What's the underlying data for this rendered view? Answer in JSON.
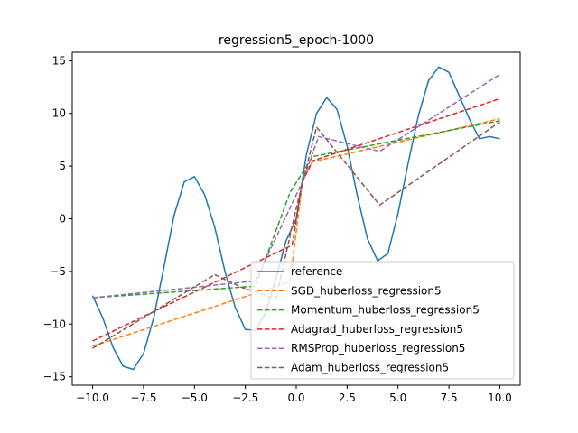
{
  "chart_data": {
    "type": "line",
    "title": "regression5_epoch-1000",
    "xlabel": "",
    "ylabel": "",
    "xlim": [
      -11,
      11
    ],
    "ylim": [
      -15.8,
      15.8
    ],
    "xticks": [
      -10,
      -7.5,
      -5,
      -2.5,
      0,
      2.5,
      5,
      7.5,
      10
    ],
    "xtick_labels": [
      "−10.0",
      "−7.5",
      "−5.0",
      "−2.5",
      "0.0",
      "2.5",
      "5.0",
      "7.5",
      "10.0"
    ],
    "yticks": [
      -15,
      -10,
      -5,
      0,
      5,
      10,
      15
    ],
    "ytick_labels": [
      "−15",
      "−10",
      "−5",
      "0",
      "5",
      "10",
      "15"
    ],
    "grid": false,
    "legend_position": "lower-right",
    "series": [
      {
        "name": "reference",
        "color": "#1f77b4",
        "dashed": false,
        "x": [
          -10.0,
          -9.5,
          -9.0,
          -8.5,
          -8.0,
          -7.5,
          -7.0,
          -6.5,
          -6.0,
          -5.5,
          -5.0,
          -4.5,
          -4.0,
          -3.5,
          -3.0,
          -2.5,
          -2.0,
          -1.5,
          -1.0,
          -0.5,
          0.0,
          0.5,
          1.0,
          1.5,
          2.0,
          2.5,
          3.0,
          3.5,
          4.0,
          4.5,
          5.0,
          5.5,
          6.0,
          6.5,
          7.0,
          7.5,
          8.0,
          8.5,
          9.0,
          9.5,
          10.0
        ],
        "y": [
          -7.3,
          -9.4,
          -12.2,
          -14.0,
          -14.3,
          -12.8,
          -9.4,
          -4.6,
          0.3,
          3.5,
          4.0,
          2.3,
          -0.8,
          -5.0,
          -8.4,
          -10.5,
          -10.6,
          -8.9,
          -5.7,
          -2.1,
          0.0,
          6.1,
          10.0,
          11.5,
          10.4,
          6.9,
          2.2,
          -1.9,
          -4.0,
          -3.3,
          0.5,
          5.3,
          9.8,
          13.1,
          14.4,
          13.9,
          11.7,
          9.5,
          7.6,
          7.8,
          7.6
        ]
      },
      {
        "name": "SGD_huberloss_regression5",
        "color": "#ff7f0e",
        "dashed": true,
        "x": [
          -10.0,
          -0.3,
          0.3,
          0.8,
          10.0
        ],
        "y": [
          -12.1,
          -6.0,
          3.5,
          5.4,
          9.5
        ]
      },
      {
        "name": "Momentum_huberloss_regression5",
        "color": "#2ca02c",
        "dashed": true,
        "x": [
          -10.0,
          -2.0,
          -0.3,
          0.8,
          10.0
        ],
        "y": [
          -7.5,
          -6.4,
          2.5,
          5.9,
          9.3
        ]
      },
      {
        "name": "Adagrad_huberloss_regression5",
        "color": "#d62728",
        "dashed": true,
        "x": [
          -10.0,
          -0.2,
          0.3,
          0.8,
          10.0
        ],
        "y": [
          -11.6,
          -2.5,
          3.5,
          5.5,
          11.4
        ]
      },
      {
        "name": "RMSProp_huberloss_regression5",
        "color": "#9467bd",
        "dashed": true,
        "x": [
          -10.0,
          -2.0,
          0.3,
          1.1,
          4.1,
          10.0
        ],
        "y": [
          -7.5,
          -5.9,
          3.5,
          7.8,
          6.4,
          13.7
        ]
      },
      {
        "name": "Adam_huberloss_regression5",
        "color": "#8c564b",
        "dashed": true,
        "x": [
          -10.0,
          -4.0,
          -2.7,
          -1.0,
          0.0,
          1.0,
          4.1,
          10.0
        ],
        "y": [
          -12.3,
          -5.3,
          -6.5,
          -7.6,
          1.0,
          8.7,
          1.3,
          9.2
        ]
      }
    ]
  }
}
